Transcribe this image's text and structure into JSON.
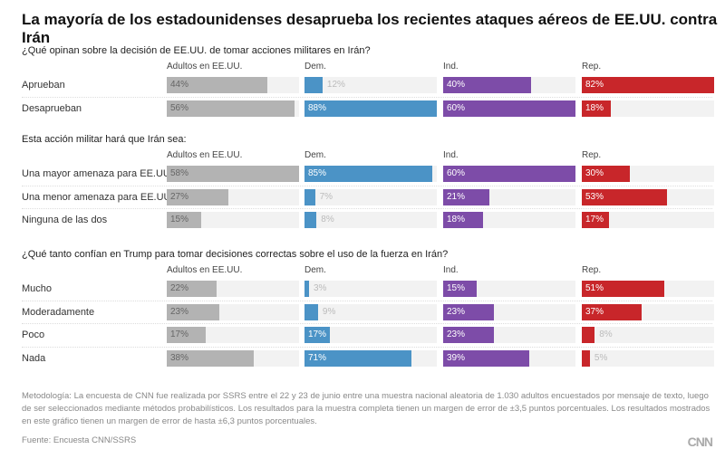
{
  "title": "La mayoría de los estadounidenses desaprueba los recientes ataques aéreos de EE.UU. contra Irán",
  "chart_data": {
    "type": "bar",
    "orientation": "horizontal",
    "columns": [
      "Adultos en EE.UU.",
      "Dem.",
      "Ind.",
      "Rep."
    ],
    "colors": [
      "#b3b3b3",
      "#4b93c6",
      "#7d4ca8",
      "#c8262a"
    ],
    "sections": [
      {
        "title": "¿Qué opinan sobre la decisión de EE.UU. de tomar acciones militares en Irán?",
        "rows": [
          {
            "label": "Aprueban",
            "values": [
              44,
              12,
              40,
              82
            ]
          },
          {
            "label": "Desaprueban",
            "values": [
              56,
              88,
              60,
              18
            ]
          }
        ]
      },
      {
        "title": "Esta acción militar hará que Irán sea:",
        "rows": [
          {
            "label": "Una mayor amenaza para EE.UU.",
            "values": [
              58,
              85,
              60,
              30
            ]
          },
          {
            "label": "Una menor amenaza para EE.UU.",
            "values": [
              27,
              7,
              21,
              53
            ]
          },
          {
            "label": "Ninguna de las dos",
            "values": [
              15,
              8,
              18,
              17
            ]
          }
        ]
      },
      {
        "title": "¿Qué tanto confían en Trump para tomar decisiones correctas sobre el uso de la fuerza en Irán?",
        "rows": [
          {
            "label": "Mucho",
            "values": [
              22,
              3,
              15,
              51
            ]
          },
          {
            "label": "Moderadamente",
            "values": [
              23,
              9,
              23,
              37
            ]
          },
          {
            "label": "Poco",
            "values": [
              17,
              17,
              23,
              8
            ]
          },
          {
            "label": "Nada",
            "values": [
              38,
              71,
              39,
              5
            ]
          }
        ]
      }
    ],
    "unit": "%"
  },
  "note": "Metodología: La encuesta de CNN fue realizada por SSRS entre el 22 y 23 de junio entre una muestra nacional aleatoria de 1.030 adultos encuestados por mensaje de texto, luego de ser seleccionados mediante métodos probabilísticos. Los resultados para la muestra completa tienen un margen de error de ±3,5 puntos porcentuales. Los resultados mostrados en este gráfico tienen un margen de error de hasta ±6,3 puntos porcentuales.",
  "source": "Fuente: Encuesta CNN/SSRS",
  "logo": "CNN"
}
